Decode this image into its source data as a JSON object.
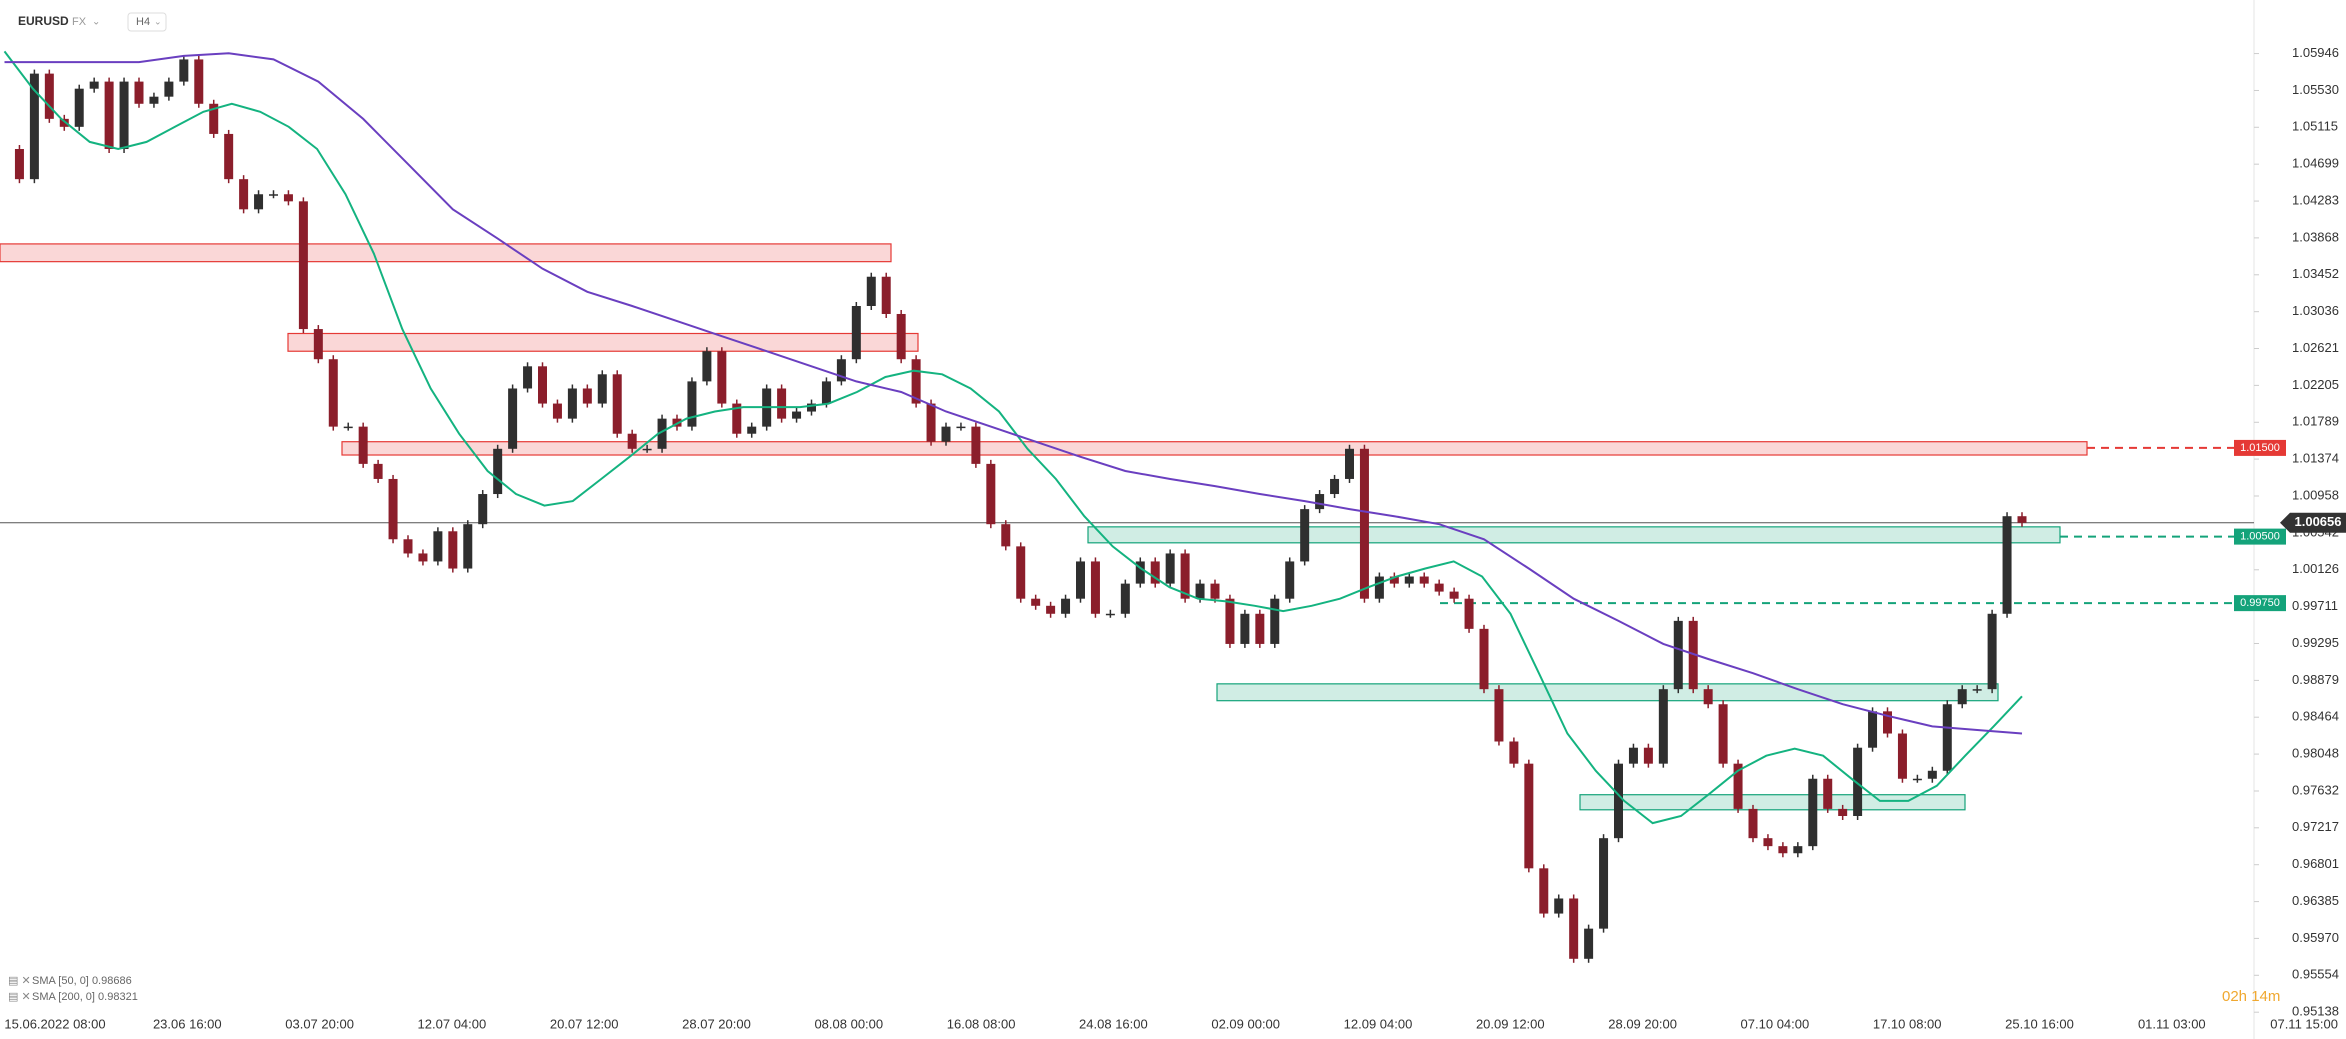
{
  "chart_data": {
    "type": "candlestick",
    "symbol": "EURUSD",
    "market": "FX",
    "timeframe": "H4",
    "up_color": "#2f2f2f",
    "down_color": "#8b1e2b",
    "ylim": [
      0.9505,
      1.0655
    ],
    "yticks": [
      1.05946,
      {
        "value": 1.0553,
        "label": "1.05530"
      },
      1.05115,
      1.04699,
      1.04283,
      1.03868,
      1.03452,
      1.03036,
      1.02621,
      1.02205,
      1.01789,
      1.01374,
      1.00958,
      1.00542,
      1.00126,
      0.99711,
      0.99295,
      0.98879,
      0.98464,
      0.98048,
      0.97632,
      0.97217,
      0.96801,
      0.96385,
      {
        "value": 0.9597,
        "label": "0.95970"
      },
      0.95554,
      0.95138
    ],
    "x_labels": [
      "15.06.2022 08:00",
      "23.06 16:00",
      "03.07 20:00",
      "12.07 04:00",
      "20.07 12:00",
      "28.07 20:00",
      "08.08 00:00",
      "16.08 08:00",
      "24.08 16:00",
      "02.09 00:00",
      "12.09 04:00",
      "20.09 12:00",
      "28.09 20:00",
      "07.10 04:00",
      "17.10 08:00",
      "25.10 16:00",
      "01.11 03:00",
      "07.11 15:00"
    ],
    "closes": [
      1.0487,
      1.0453,
      1.0572,
      1.0521,
      1.0512,
      1.0555,
      1.0563,
      1.0487,
      1.0563,
      1.0538,
      1.0546,
      1.0563,
      1.0588,
      1.0538,
      1.0504,
      1.0453,
      1.0419,
      1.0436,
      1.0436,
      1.0428,
      1.0284,
      1.025,
      1.0174,
      1.0174,
      1.0132,
      1.0115,
      1.0047,
      1.0031,
      1.0022,
      1.0056,
      1.0014,
      1.0064,
      1.0098,
      1.0149,
      1.0217,
      1.0242,
      1.02,
      1.0183,
      1.0217,
      1.02,
      1.0233,
      1.0166,
      1.0149,
      1.0149,
      1.0183,
      1.0174,
      1.0225,
      1.0259,
      1.02,
      1.0166,
      1.0174,
      1.0217,
      1.0183,
      1.0191,
      1.02,
      1.0225,
      1.025,
      1.031,
      1.0343,
      1.0301,
      1.025,
      1.02,
      1.0157,
      1.0174,
      1.0174,
      1.0132,
      1.0064,
      1.0039,
      0.998,
      0.9972,
      0.9963,
      0.998,
      1.0022,
      0.9963,
      0.9963,
      0.9997,
      1.0022,
      0.9997,
      1.0031,
      0.998,
      0.9997,
      0.998,
      0.9929,
      0.9963,
      0.9929,
      0.998,
      1.0022,
      1.0081,
      1.0098,
      1.0115,
      1.0149,
      0.998,
      1.0005,
      0.9997,
      1.0005,
      0.9997,
      0.9988,
      0.998,
      0.9946,
      0.9878,
      0.9819,
      0.9794,
      0.9676,
      0.9625,
      0.9642,
      0.9574,
      0.9608,
      0.971,
      0.9794,
      0.9812,
      0.9794,
      0.9878,
      0.9955,
      0.9878,
      0.9861,
      0.9794,
      0.9743,
      0.971,
      0.9701,
      0.9693,
      0.9701,
      0.9777,
      0.9743,
      0.9735,
      0.9812,
      0.9853,
      0.9828,
      0.9777,
      0.9777,
      0.9786,
      0.9861,
      0.9878,
      0.9878,
      0.9963,
      1.0073,
      1.00656
    ],
    "series": [
      {
        "name": "SMA [50, 0]",
        "value": 0.98686,
        "color": "#14b380",
        "values": [
          1.0597,
          1.0555,
          1.0521,
          1.0495,
          1.0487,
          1.0495,
          1.0512,
          1.0529,
          1.0538,
          1.0529,
          1.0512,
          1.0487,
          1.0436,
          1.0369,
          1.0284,
          1.0217,
          1.0166,
          1.0124,
          1.0098,
          1.0085,
          1.009,
          1.0115,
          1.014,
          1.0166,
          1.0183,
          1.0191,
          1.0196,
          1.0196,
          1.0196,
          1.02,
          1.0213,
          1.023,
          1.0237,
          1.0233,
          1.0217,
          1.0191,
          1.0149,
          1.0115,
          1.0073,
          1.0039,
          1.0014,
          0.9993,
          0.998,
          0.9977,
          0.9972,
          0.9966,
          0.9972,
          0.998,
          0.9993,
          1.0005,
          1.0014,
          1.0022,
          1.0005,
          0.9963,
          0.9896,
          0.9828,
          0.9786,
          0.9752,
          0.9727,
          0.9735,
          0.976,
          0.9786,
          0.9803,
          0.9811,
          0.9803,
          0.9777,
          0.9752,
          0.9752,
          0.9769,
          0.9803,
          0.9836,
          0.987
        ]
      },
      {
        "name": "SMA [200, 0]",
        "value": 0.98321,
        "color": "#6a3fc0",
        "values": [
          1.0585,
          1.0585,
          1.0585,
          1.0585,
          1.0592,
          1.0595,
          1.0588,
          1.0563,
          1.0521,
          1.047,
          1.0419,
          1.0386,
          1.0352,
          1.0326,
          1.031,
          1.0293,
          1.0276,
          1.0259,
          1.0242,
          1.0225,
          1.0213,
          1.0191,
          1.0174,
          1.0157,
          1.014,
          1.0124,
          1.0115,
          1.0107,
          1.0098,
          1.009,
          1.0081,
          1.0073,
          1.0064,
          1.0047,
          1.0014,
          0.998,
          0.9955,
          0.9929,
          0.9912,
          0.9896,
          0.9878,
          0.9861,
          0.9848,
          0.9836,
          0.9832,
          0.9828
        ]
      }
    ],
    "zones": [
      {
        "low": 1.036,
        "high": 1.038,
        "color": "#e53935"
      },
      {
        "low": 1.0259,
        "high": 1.0279,
        "color": "#e53935"
      },
      {
        "low": 1.0142,
        "high": 1.0157,
        "color": "#e53935"
      },
      {
        "low": 1.0043,
        "high": 1.0061,
        "color": "#14a37a"
      },
      {
        "low": 0.9865,
        "high": 0.9884,
        "color": "#14a37a"
      },
      {
        "low": 0.9742,
        "high": 0.9759,
        "color": "#14a37a"
      }
    ],
    "levels": [
      {
        "value": 1.015,
        "label": "1.01500",
        "color": "#e53935"
      },
      {
        "value": 1.005,
        "label": "1.00500",
        "color": "#14a37a"
      },
      {
        "value": 0.9975,
        "label": "0.99750",
        "color": "#14a37a"
      }
    ],
    "last_price": 1.00656,
    "timer": "02h 14m"
  }
}
